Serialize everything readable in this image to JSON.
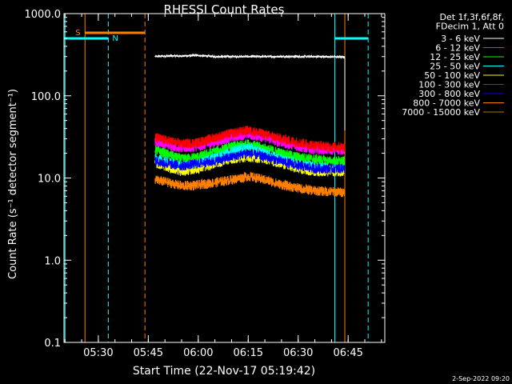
{
  "chart_data": {
    "type": "line",
    "title": "RHESSI Count Rates",
    "xlabel": "Start Time (22-Nov-17 05:19:42)",
    "ylabel": "Count Rate (s⁻¹ detector segment⁻¹)",
    "y_scale": "log",
    "ylim": [
      0.1,
      1000
    ],
    "xlim": [
      "05:19:42",
      "06:56:00"
    ],
    "x_ticks": [
      "05:30",
      "05:45",
      "06:00",
      "06:15",
      "06:30",
      "06:45"
    ],
    "y_ticks": [
      "0.1",
      "1.0",
      "10.0",
      "100.0",
      "1000.0"
    ],
    "legend_header": [
      "Det 1f,3f,6f,8f,",
      "FDecim 1, Att 0"
    ],
    "legend_position": "outside-right",
    "series": [
      {
        "name": "3 - 6 keV",
        "color": "#ffffff",
        "x": [
          "05:47",
          "05:50",
          "05:55",
          "06:00",
          "06:05",
          "06:10",
          "06:15",
          "06:20",
          "06:25",
          "06:30",
          "06:35",
          "06:40",
          "06:44"
        ],
        "values": [
          300,
          305,
          305,
          310,
          300,
          300,
          300,
          300,
          300,
          300,
          300,
          298,
          296
        ]
      },
      {
        "name": "6 - 12 keV",
        "color": "#ff00ff",
        "x": [
          "05:47",
          "05:50",
          "05:55",
          "06:00",
          "06:05",
          "06:10",
          "06:15",
          "06:20",
          "06:25",
          "06:30",
          "06:35",
          "06:40",
          "06:44"
        ],
        "values": [
          28,
          26,
          23,
          24,
          27,
          31,
          34,
          31,
          27,
          24,
          22,
          22,
          22
        ]
      },
      {
        "name": "12 - 25 keV",
        "color": "#00ff00",
        "x": [
          "05:47",
          "05:50",
          "05:55",
          "06:00",
          "06:05",
          "06:10",
          "06:15",
          "06:20",
          "06:25",
          "06:30",
          "06:35",
          "06:40",
          "06:44"
        ],
        "values": [
          22,
          20,
          17,
          18,
          21,
          24,
          26,
          23,
          20,
          18,
          17,
          16,
          16
        ]
      },
      {
        "name": "25 - 50 keV",
        "color": "#00ffff",
        "x": [
          "05:47",
          "05:50",
          "05:55",
          "06:00",
          "06:05",
          "06:10",
          "06:15",
          "06:20",
          "06:25",
          "06:30",
          "06:35",
          "06:40",
          "06:44"
        ],
        "values": [
          17,
          16,
          14,
          15,
          18,
          21,
          24,
          20,
          17,
          15,
          14,
          13,
          13
        ]
      },
      {
        "name": "50 - 100 keV",
        "color": "#ffff00",
        "x": [
          "05:47",
          "05:50",
          "05:55",
          "06:00",
          "06:05",
          "06:10",
          "06:15",
          "06:20",
          "06:25",
          "06:30",
          "06:35",
          "06:40",
          "06:44"
        ],
        "values": [
          15,
          14,
          12,
          13,
          15,
          17,
          18,
          17,
          15,
          13,
          12,
          12,
          12
        ]
      },
      {
        "name": "100 - 300 keV",
        "color": "#ff0000",
        "x": [
          "05:47",
          "05:50",
          "05:55",
          "06:00",
          "06:05",
          "06:10",
          "06:15",
          "06:20",
          "06:25",
          "06:30",
          "06:35",
          "06:40",
          "06:44"
        ],
        "values": [
          31,
          29,
          26,
          27,
          31,
          35,
          38,
          34,
          30,
          27,
          25,
          24,
          24
        ]
      },
      {
        "name": "300 - 800 keV",
        "color": "#0000ff",
        "x": [
          "05:47",
          "05:50",
          "05:55",
          "06:00",
          "06:05",
          "06:10",
          "06:15",
          "06:20",
          "06:25",
          "06:30",
          "06:35",
          "06:40",
          "06:44"
        ],
        "values": [
          16,
          15,
          14,
          15,
          16,
          18,
          20,
          18,
          16,
          14,
          13,
          13,
          13
        ]
      },
      {
        "name": "800 - 7000 keV",
        "color": "#ff8000",
        "x": [
          "05:47",
          "05:50",
          "05:55",
          "06:00",
          "06:05",
          "06:10",
          "06:15",
          "06:20",
          "06:25",
          "06:30",
          "06:35",
          "06:40",
          "06:44"
        ],
        "values": [
          9.5,
          9,
          8,
          8.2,
          8.8,
          9.5,
          10.5,
          9.5,
          8.3,
          7.5,
          7,
          6.8,
          6.7
        ]
      },
      {
        "name": "7000 - 15000 keV",
        "color": "#a08000",
        "x": [],
        "values": []
      }
    ],
    "markers": [
      {
        "label": "S",
        "color": "#ff8000",
        "style": "solid",
        "x": "05:26"
      },
      {
        "label": "N",
        "color": "#00ffff",
        "style": "dashed",
        "x": "05:33"
      }
    ]
  },
  "footer_timestamp": "2-Sep-2022 09:20"
}
